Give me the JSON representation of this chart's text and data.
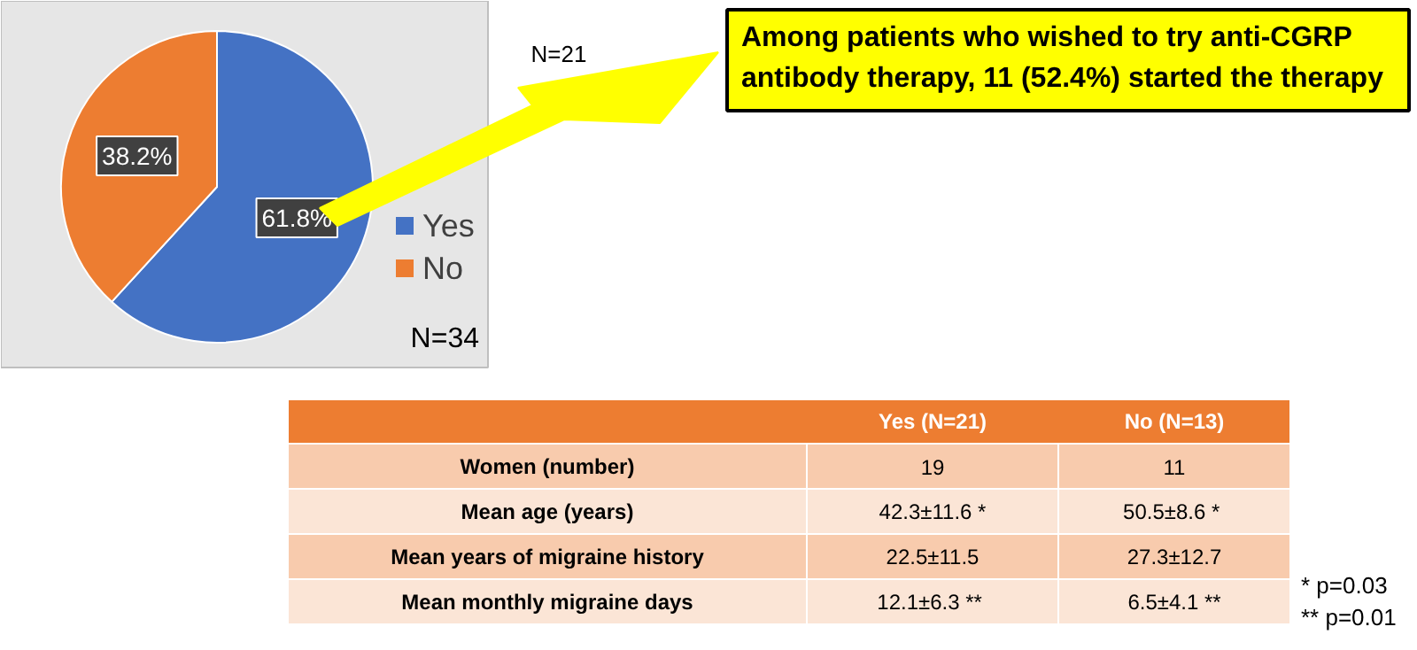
{
  "chart_data": {
    "type": "pie",
    "categories": [
      "Yes",
      "No"
    ],
    "values": [
      61.8,
      38.2
    ],
    "colors": [
      "#4472c4",
      "#ed7d31"
    ],
    "value_labels": [
      "61.8%",
      "38.2%"
    ],
    "legend": "right",
    "annotations": [
      "N=21",
      "Among patients who wished to try anti-CGRP antibody therapy, 11 (52.4%) started the therapy",
      "N=34",
      "Yes (N=21)",
      "No (N=13)",
      "Women (number)",
      "19",
      "11",
      "Mean age (years)",
      "42.3±11.6 *",
      "50.5±8.6  *",
      "Mean years of migraine history",
      "22.5±11.5",
      "27.3±12.7",
      "Mean monthly migraine days",
      "12.1±6.3  **",
      "6.5±4.1 **",
      "*   p=0.03",
      "** p=0.01"
    ]
  }
}
